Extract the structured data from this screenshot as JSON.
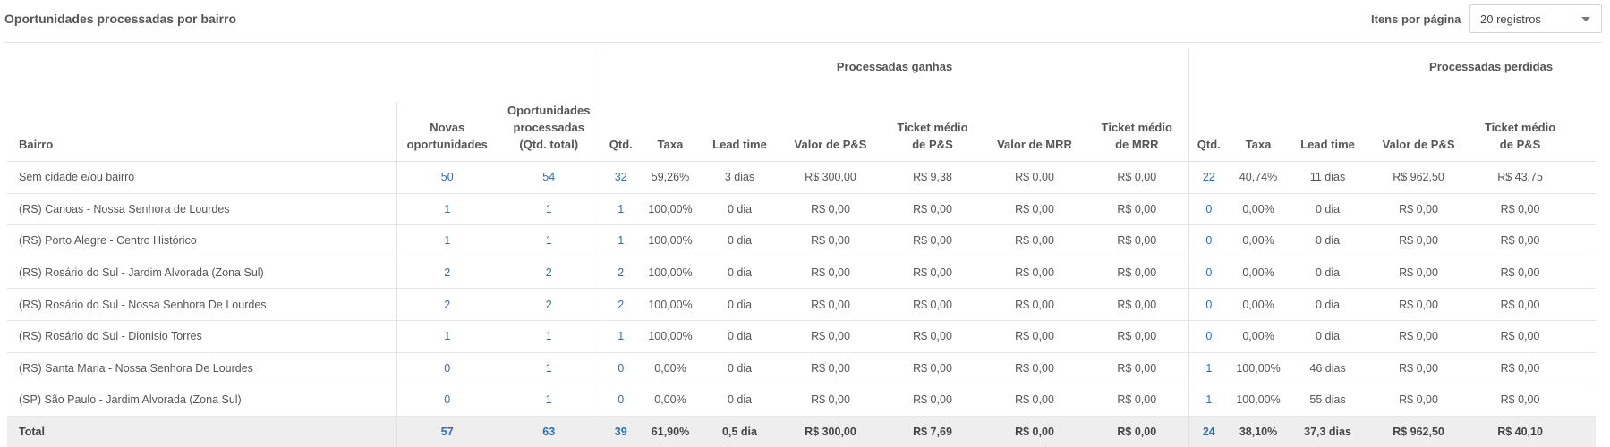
{
  "header": {
    "title": "Oportunidades processadas por bairro",
    "per_page_label": "Itens por página",
    "per_page_value": "20 registros"
  },
  "table": {
    "group_headers": {
      "won": "Processadas ganhas",
      "lost": "Processadas perdidas"
    },
    "columns": {
      "bairro": "Bairro",
      "novas_l1": "Novas",
      "novas_l2": "oportunidades",
      "proc_l1": "Oportunidades",
      "proc_l2": "processadas",
      "proc_l3": "(Qtd. total)",
      "qtd": "Qtd.",
      "taxa": "Taxa",
      "lead_time": "Lead time",
      "valor_ps": "Valor de P&S",
      "ticket_ps_l1": "Ticket médio",
      "ticket_ps_l2": "de P&S",
      "valor_mrr": "Valor de MRR",
      "ticket_mrr_l1": "Ticket médio",
      "ticket_mrr_l2": "de MRR"
    },
    "rows": [
      {
        "bairro": "Sem cidade e/ou bairro",
        "novas": "50",
        "processadas": "54",
        "won_qtd": "32",
        "won_taxa": "59,26%",
        "won_lead": "3 dias",
        "won_valor_ps": "R$ 300,00",
        "won_ticket_ps": "R$ 9,38",
        "won_valor_mrr": "R$ 0,00",
        "won_ticket_mrr": "R$ 0,00",
        "lost_qtd": "22",
        "lost_taxa": "40,74%",
        "lost_lead": "11 dias",
        "lost_valor_ps": "R$ 962,50",
        "lost_ticket_ps": "R$ 43,75"
      },
      {
        "bairro": "(RS) Canoas - Nossa Senhora de Lourdes",
        "novas": "1",
        "processadas": "1",
        "won_qtd": "1",
        "won_taxa": "100,00%",
        "won_lead": "0 dia",
        "won_valor_ps": "R$ 0,00",
        "won_ticket_ps": "R$ 0,00",
        "won_valor_mrr": "R$ 0,00",
        "won_ticket_mrr": "R$ 0,00",
        "lost_qtd": "0",
        "lost_taxa": "0,00%",
        "lost_lead": "0 dia",
        "lost_valor_ps": "R$ 0,00",
        "lost_ticket_ps": "R$ 0,00"
      },
      {
        "bairro": "(RS) Porto Alegre - Centro Histórico",
        "novas": "1",
        "processadas": "1",
        "won_qtd": "1",
        "won_taxa": "100,00%",
        "won_lead": "0 dia",
        "won_valor_ps": "R$ 0,00",
        "won_ticket_ps": "R$ 0,00",
        "won_valor_mrr": "R$ 0,00",
        "won_ticket_mrr": "R$ 0,00",
        "lost_qtd": "0",
        "lost_taxa": "0,00%",
        "lost_lead": "0 dia",
        "lost_valor_ps": "R$ 0,00",
        "lost_ticket_ps": "R$ 0,00"
      },
      {
        "bairro": "(RS) Rosário do Sul - Jardim Alvorada (Zona Sul)",
        "novas": "2",
        "processadas": "2",
        "won_qtd": "2",
        "won_taxa": "100,00%",
        "won_lead": "0 dia",
        "won_valor_ps": "R$ 0,00",
        "won_ticket_ps": "R$ 0,00",
        "won_valor_mrr": "R$ 0,00",
        "won_ticket_mrr": "R$ 0,00",
        "lost_qtd": "0",
        "lost_taxa": "0,00%",
        "lost_lead": "0 dia",
        "lost_valor_ps": "R$ 0,00",
        "lost_ticket_ps": "R$ 0,00"
      },
      {
        "bairro": "(RS) Rosário do Sul - Nossa Senhora De Lourdes",
        "novas": "2",
        "processadas": "2",
        "won_qtd": "2",
        "won_taxa": "100,00%",
        "won_lead": "0 dia",
        "won_valor_ps": "R$ 0,00",
        "won_ticket_ps": "R$ 0,00",
        "won_valor_mrr": "R$ 0,00",
        "won_ticket_mrr": "R$ 0,00",
        "lost_qtd": "0",
        "lost_taxa": "0,00%",
        "lost_lead": "0 dia",
        "lost_valor_ps": "R$ 0,00",
        "lost_ticket_ps": "R$ 0,00"
      },
      {
        "bairro": "(RS) Rosário do Sul - Dionisio Torres",
        "novas": "1",
        "processadas": "1",
        "won_qtd": "1",
        "won_taxa": "100,00%",
        "won_lead": "0 dia",
        "won_valor_ps": "R$ 0,00",
        "won_ticket_ps": "R$ 0,00",
        "won_valor_mrr": "R$ 0,00",
        "won_ticket_mrr": "R$ 0,00",
        "lost_qtd": "0",
        "lost_taxa": "0,00%",
        "lost_lead": "0 dia",
        "lost_valor_ps": "R$ 0,00",
        "lost_ticket_ps": "R$ 0,00"
      },
      {
        "bairro": "(RS) Santa Maria - Nossa Senhora De Lourdes",
        "novas": "0",
        "processadas": "1",
        "won_qtd": "0",
        "won_taxa": "0,00%",
        "won_lead": "0 dia",
        "won_valor_ps": "R$ 0,00",
        "won_ticket_ps": "R$ 0,00",
        "won_valor_mrr": "R$ 0,00",
        "won_ticket_mrr": "R$ 0,00",
        "lost_qtd": "1",
        "lost_taxa": "100,00%",
        "lost_lead": "46 dias",
        "lost_valor_ps": "R$ 0,00",
        "lost_ticket_ps": "R$ 0,00"
      },
      {
        "bairro": "(SP) São Paulo - Jardim Alvorada (Zona Sul)",
        "novas": "0",
        "processadas": "1",
        "won_qtd": "0",
        "won_taxa": "0,00%",
        "won_lead": "0 dia",
        "won_valor_ps": "R$ 0,00",
        "won_ticket_ps": "R$ 0,00",
        "won_valor_mrr": "R$ 0,00",
        "won_ticket_mrr": "R$ 0,00",
        "lost_qtd": "1",
        "lost_taxa": "100,00%",
        "lost_lead": "55 dias",
        "lost_valor_ps": "R$ 0,00",
        "lost_ticket_ps": "R$ 0,00"
      }
    ],
    "total": {
      "bairro": "Total",
      "novas": "57",
      "processadas": "63",
      "won_qtd": "39",
      "won_taxa": "61,90%",
      "won_lead": "0,5 dia",
      "won_valor_ps": "R$ 300,00",
      "won_ticket_ps": "R$ 7,69",
      "won_valor_mrr": "R$ 0,00",
      "won_ticket_mrr": "R$ 0,00",
      "lost_qtd": "24",
      "lost_taxa": "38,10%",
      "lost_lead": "37,3 dias",
      "lost_valor_ps": "R$ 962,50",
      "lost_ticket_ps": "R$ 40,10"
    }
  }
}
